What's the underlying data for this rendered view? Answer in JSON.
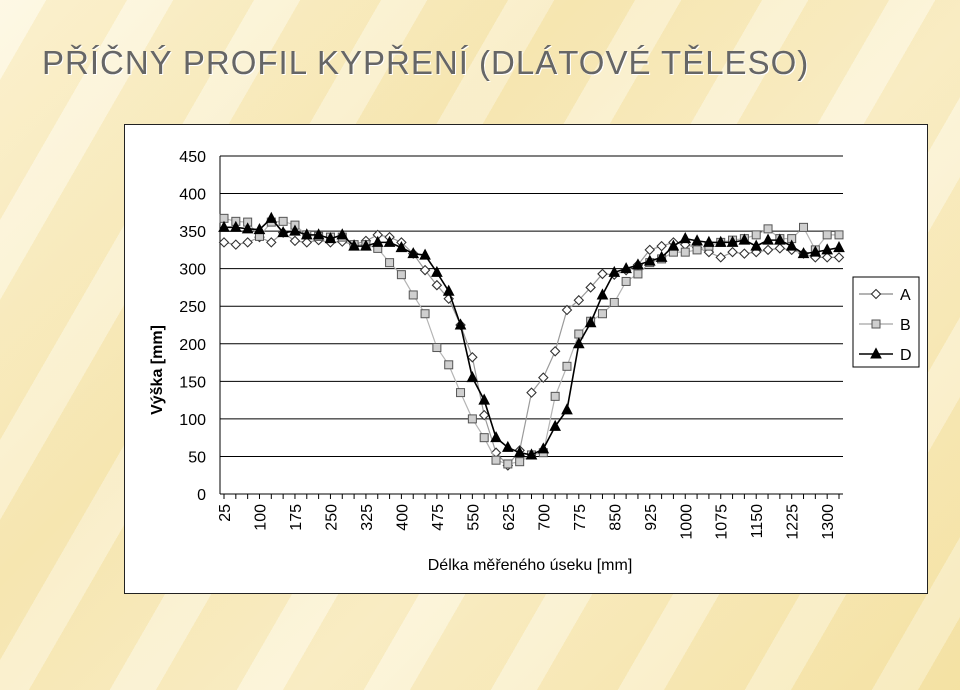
{
  "slide": {
    "title": "PŘÍČNÝ PROFIL KYPŘENÍ (DLÁTOVÉ TĚLESO)"
  },
  "chart_data": {
    "type": "line",
    "xlabel": "Délka měřeného úseku [mm]",
    "ylabel": "Výška [mm]",
    "ylim": [
      0,
      450
    ],
    "yticks": [
      0,
      50,
      100,
      150,
      200,
      250,
      300,
      350,
      400,
      450
    ],
    "x": [
      25,
      50,
      75,
      100,
      125,
      150,
      175,
      200,
      225,
      250,
      275,
      300,
      325,
      350,
      375,
      400,
      425,
      450,
      475,
      500,
      525,
      550,
      575,
      600,
      625,
      650,
      675,
      700,
      725,
      750,
      775,
      800,
      825,
      850,
      875,
      900,
      925,
      950,
      975,
      1000,
      1025,
      1050,
      1075,
      1100,
      1125,
      1150,
      1175,
      1200,
      1225,
      1250,
      1275,
      1300,
      1325
    ],
    "xtick_labels": [
      "25",
      "100",
      "175",
      "250",
      "325",
      "400",
      "475",
      "550",
      "625",
      "700",
      "775",
      "850",
      "925",
      "1000",
      "1075",
      "1150",
      "1225",
      "1300"
    ],
    "grid": "horizontal",
    "legend_position": "right",
    "series": [
      {
        "name": "A",
        "marker": "diamond",
        "line_color": "#9a9a9a",
        "values": [
          335,
          332,
          335,
          342,
          335,
          348,
          337,
          335,
          338,
          335,
          336,
          332,
          337,
          345,
          342,
          335,
          320,
          298,
          278,
          260,
          225,
          182,
          105,
          55,
          38,
          58,
          135,
          155,
          190,
          245,
          258,
          275,
          293,
          292,
          298,
          305,
          325,
          330,
          335,
          332,
          328,
          322,
          315,
          322,
          320,
          322,
          325,
          327,
          325,
          320,
          315,
          315,
          315
        ]
      },
      {
        "name": "B",
        "marker": "square",
        "line_color": "#b4b4b4",
        "values": [
          367,
          363,
          362,
          343,
          362,
          363,
          358,
          345,
          343,
          342,
          342,
          332,
          332,
          327,
          308,
          292,
          265,
          240,
          195,
          172,
          135,
          100,
          75,
          45,
          40,
          43,
          52,
          55,
          130,
          170,
          213,
          230,
          240,
          255,
          283,
          293,
          308,
          313,
          322,
          322,
          325,
          330,
          335,
          338,
          340,
          345,
          353,
          340,
          340,
          355,
          325,
          345,
          345
        ]
      },
      {
        "name": "D",
        "marker": "triangle",
        "line_color": "#000000",
        "values": [
          355,
          355,
          353,
          352,
          367,
          348,
          350,
          345,
          345,
          340,
          345,
          330,
          330,
          335,
          335,
          328,
          320,
          318,
          295,
          270,
          225,
          155,
          125,
          75,
          62,
          55,
          52,
          60,
          90,
          112,
          200,
          228,
          265,
          295,
          300,
          305,
          310,
          315,
          330,
          340,
          337,
          335,
          335,
          335,
          338,
          330,
          338,
          338,
          330,
          320,
          322,
          325,
          328
        ]
      }
    ]
  }
}
